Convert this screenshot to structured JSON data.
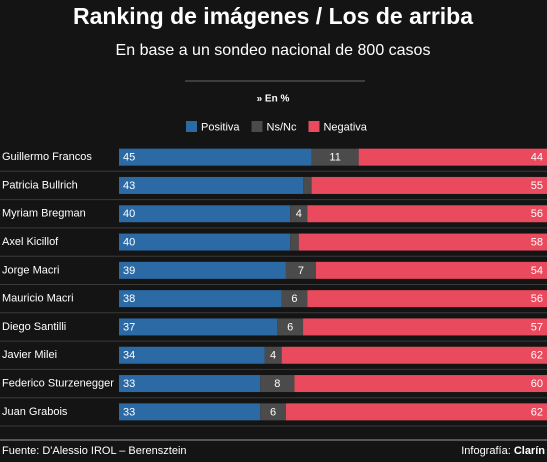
{
  "chart_data": {
    "type": "stacked-bar-horizontal",
    "title": "Ranking de imágenes / Los de arriba",
    "subtitle": "En base a un sondeo nacional de 800 casos",
    "note": "» En %",
    "categories": [
      "Guillermo Francos",
      "Patricia Bullrich",
      "Myriam Bregman",
      "Axel Kicillof",
      "Jorge Macri",
      "Mauricio Macri",
      "Diego Santilli",
      "Javier Milei",
      "Federico Sturzenegger",
      "Juan Grabois"
    ],
    "series": [
      {
        "name": "Positiva",
        "color": "#2c6aa6",
        "values": [
          45,
          43,
          40,
          40,
          39,
          38,
          37,
          34,
          33,
          33
        ]
      },
      {
        "name": "Ns/Nc",
        "color": "#4b4b4b",
        "values": [
          11,
          2,
          4,
          2,
          7,
          6,
          6,
          4,
          8,
          6
        ]
      },
      {
        "name": "Negativa",
        "color": "#e94a5d",
        "values": [
          44,
          55,
          56,
          58,
          54,
          56,
          57,
          62,
          60,
          62
        ]
      }
    ],
    "xlim": [
      0,
      100
    ],
    "source": "Fuente: D'Alessio IROL – Berensztein",
    "credit_label": "Infografía: ",
    "credit_brand": "Clarín"
  }
}
